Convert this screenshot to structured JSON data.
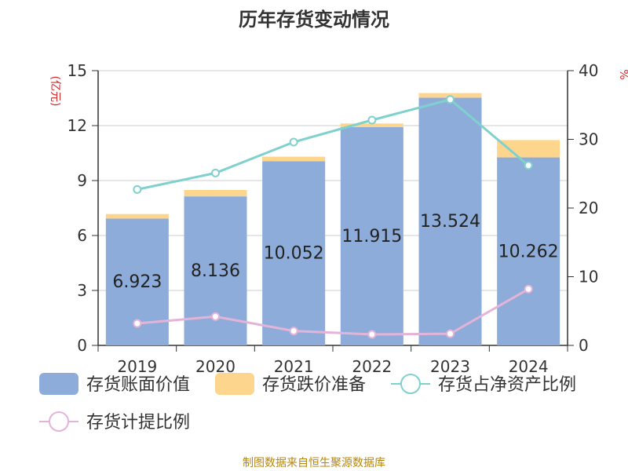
{
  "chart_data": {
    "type": "bar",
    "title": "历年存货变动情况",
    "categories": [
      "2019",
      "2020",
      "2021",
      "2022",
      "2023",
      "2024"
    ],
    "series": [
      {
        "name": "存货账面价值",
        "type": "bar",
        "axis": "left",
        "stack": "inv",
        "color": "#8eacd9",
        "values": [
          6.923,
          8.136,
          10.052,
          11.915,
          13.524,
          10.262
        ],
        "labels": [
          "6.923",
          "8.136",
          "10.052",
          "11.915",
          "13.524",
          "10.262"
        ]
      },
      {
        "name": "存货跌价准备",
        "type": "bar",
        "axis": "left",
        "stack": "inv",
        "color": "#fdd58c",
        "values": [
          0.25,
          0.35,
          0.25,
          0.2,
          0.25,
          0.95
        ]
      },
      {
        "name": "存货占净资产比例",
        "type": "line",
        "axis": "right",
        "color": "#7fd1ce",
        "values": [
          22.7,
          25.1,
          29.6,
          32.8,
          35.8,
          26.2
        ]
      },
      {
        "name": "存货计提比例",
        "type": "line",
        "axis": "right",
        "color": "#e4b4d8",
        "values": [
          3.2,
          4.2,
          2.1,
          1.6,
          1.7,
          8.2
        ]
      }
    ],
    "y_left": {
      "label": "(亿元)",
      "min": 0,
      "max": 15,
      "ticks": [
        "0",
        "3",
        "6",
        "9",
        "12",
        "15"
      ]
    },
    "y_right": {
      "label": "%",
      "min": 0,
      "max": 40,
      "ticks": [
        "0",
        "10",
        "20",
        "30",
        "40"
      ]
    },
    "grid": true,
    "legend_position": "bottom"
  },
  "source": "制图数据来自恒生聚源数据库"
}
